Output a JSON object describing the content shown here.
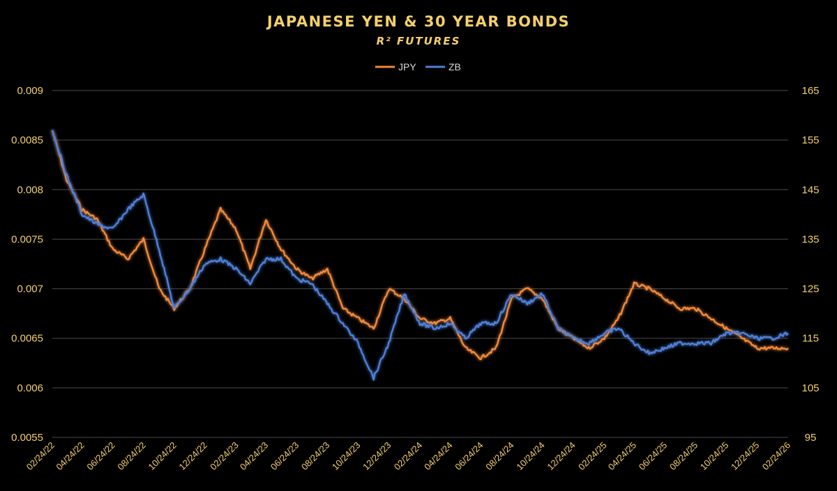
{
  "chart_data": {
    "type": "line",
    "title": "JAPANESE YEN & 30 YEAR BONDS",
    "subtitle": "R² FUTURES",
    "legend_position": "top-center",
    "grid": true,
    "colors": {
      "title": "#f5d06a",
      "axis_text": "#f5d06a",
      "grid": "#4a4a4a",
      "JPY": "#f08a3c",
      "ZB": "#4f7fd8"
    },
    "y_left": {
      "ticks": [
        "0.009",
        "0.0085",
        "0.008",
        "0.0075",
        "0.007",
        "0.0065",
        "0.006",
        "0.0055"
      ],
      "range": [
        0.0055,
        0.009
      ]
    },
    "y_right": {
      "ticks": [
        "165",
        "155",
        "145",
        "135",
        "125",
        "115",
        "105",
        "95"
      ],
      "range": [
        95,
        165
      ]
    },
    "x_ticks": [
      "02/24/22",
      "04/24/22",
      "06/24/22",
      "08/24/22",
      "10/24/22",
      "12/24/22",
      "02/24/23",
      "04/24/23",
      "06/24/23",
      "08/24/23",
      "10/24/23",
      "12/24/23",
      "02/24/24",
      "04/24/24",
      "06/24/24",
      "08/24/24",
      "10/24/24",
      "12/24/24",
      "02/24/25",
      "04/24/25",
      "06/24/25",
      "08/24/25",
      "10/24/25",
      "12/24/25",
      "02/24/26"
    ],
    "x": [
      "2022-02-24",
      "2022-03-24",
      "2022-04-24",
      "2022-05-24",
      "2022-06-24",
      "2022-07-24",
      "2022-08-24",
      "2022-09-24",
      "2022-10-24",
      "2022-11-24",
      "2022-12-24",
      "2023-01-24",
      "2023-02-24",
      "2023-03-24",
      "2023-04-24",
      "2023-05-24",
      "2023-06-24",
      "2023-07-24",
      "2023-08-24",
      "2023-09-24",
      "2023-10-24",
      "2023-11-24",
      "2023-12-24",
      "2024-01-24",
      "2024-02-24",
      "2024-03-24",
      "2024-04-24",
      "2024-05-24",
      "2024-06-24",
      "2024-07-24",
      "2024-08-24",
      "2024-09-24",
      "2024-10-24",
      "2024-11-24",
      "2024-12-24",
      "2025-01-24",
      "2025-02-24",
      "2025-03-24",
      "2025-04-24",
      "2025-05-24",
      "2025-06-24",
      "2025-07-24",
      "2025-08-24",
      "2025-09-24",
      "2025-10-24",
      "2025-11-24",
      "2025-12-24",
      "2026-01-24",
      "2026-02-24"
    ],
    "series": [
      {
        "name": "JPY",
        "axis": "left",
        "values": [
          0.0086,
          0.0081,
          0.0078,
          0.0077,
          0.0074,
          0.0073,
          0.0075,
          0.007,
          0.0068,
          0.007,
          0.0074,
          0.0078,
          0.0076,
          0.0072,
          0.0077,
          0.0074,
          0.0072,
          0.0071,
          0.0072,
          0.0068,
          0.0067,
          0.0066,
          0.007,
          0.0069,
          0.0067,
          0.00665,
          0.0067,
          0.0064,
          0.0063,
          0.0064,
          0.0069,
          0.007,
          0.0069,
          0.0066,
          0.0065,
          0.0064,
          0.0065,
          0.0067,
          0.00705,
          0.007,
          0.0069,
          0.0068,
          0.0068,
          0.0067,
          0.0066,
          0.0065,
          0.0064,
          0.0064,
          0.0064
        ]
      },
      {
        "name": "ZB",
        "axis": "right",
        "values": [
          157,
          148,
          140,
          138,
          137,
          141,
          144,
          133,
          121,
          125,
          130,
          131,
          129,
          126,
          131,
          131,
          127,
          126,
          122,
          118,
          114,
          107,
          114,
          124,
          118,
          117,
          118,
          115,
          118,
          118,
          124,
          122,
          124,
          117,
          115,
          114,
          116,
          117,
          114,
          112,
          113,
          114,
          114,
          114,
          116,
          116,
          115,
          115,
          116
        ]
      }
    ]
  }
}
